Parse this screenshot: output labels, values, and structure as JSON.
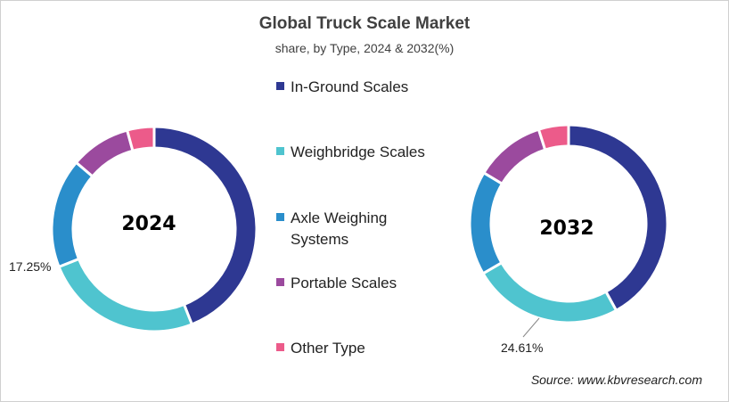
{
  "header": {
    "title": "Global Truck Scale Market",
    "subtitle": "share, by Type, 2024 & 2032(%)"
  },
  "legend": [
    {
      "label": "In-Ground Scales",
      "color": "#2e3892"
    },
    {
      "label": "Weighbridge Scales",
      "color": "#4fc4cf"
    },
    {
      "label": "Axle Weighing Systems",
      "color": "#2a8ecb"
    },
    {
      "label": "Portable Scales",
      "color": "#9b4a9e"
    },
    {
      "label": "Other Type",
      "color": "#ec5b8a"
    }
  ],
  "donut_2024": {
    "center_label": "2024",
    "callout": "17.25%"
  },
  "donut_2032": {
    "center_label": "2032",
    "callout": "24.61%"
  },
  "footer": {
    "source": "Source: www.kbvresearch.com"
  },
  "chart_data": {
    "type": "pie",
    "variant": "donut",
    "title": "Global Truck Scale Market",
    "subtitle": "share, by Type, 2024 & 2032(%)",
    "categories": [
      "In-Ground Scales",
      "Weighbridge Scales",
      "Axle Weighing Systems",
      "Portable Scales",
      "Other Type"
    ],
    "colors": [
      "#2e3892",
      "#4fc4cf",
      "#2a8ecb",
      "#9b4a9e",
      "#ec5b8a"
    ],
    "series": [
      {
        "name": "2024",
        "values": [
          44.0,
          25.0,
          17.25,
          9.5,
          4.25
        ]
      },
      {
        "name": "2032",
        "values": [
          42.0,
          24.61,
          17.0,
          11.5,
          4.89
        ]
      }
    ],
    "annotations": [
      {
        "series": "2024",
        "category": "Axle Weighing Systems",
        "text": "17.25%"
      },
      {
        "series": "2032",
        "category": "Weighbridge Scales",
        "text": "24.61%"
      }
    ],
    "legend_position": "center",
    "source": "Source: www.kbvresearch.com"
  }
}
